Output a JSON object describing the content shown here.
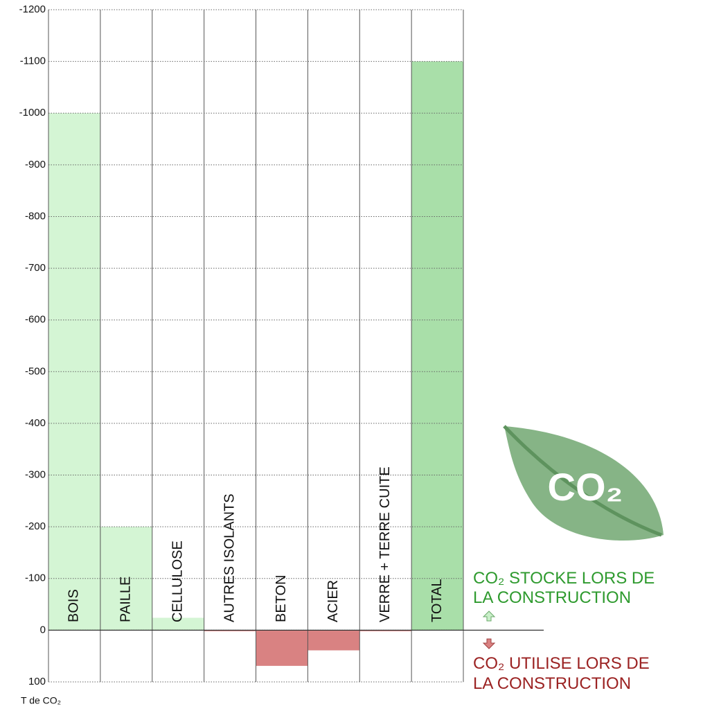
{
  "chart_data": {
    "type": "bar",
    "y_label": "T de CO₂",
    "categories": [
      "BOIS",
      "PAILLE",
      "CELLULOSE",
      "AUTRES ISOLANTS",
      "BETON",
      "ACIER",
      "VERRE + TERRE CUITE",
      "TOTAL"
    ],
    "values": [
      -1000,
      -200,
      -24,
      2,
      69,
      39,
      2,
      -1100
    ],
    "colors": [
      "#d4f5d4",
      "#d4f5d4",
      "#d4f5d4",
      "#d98282",
      "#d98282",
      "#d98282",
      "#d98282",
      "#a9dfa9"
    ],
    "ylim": [
      -1200,
      100
    ],
    "yticks": [
      -1200,
      -1100,
      -1000,
      -900,
      -800,
      -700,
      -600,
      -500,
      -400,
      -300,
      -200,
      -100,
      0,
      100
    ],
    "grid": true,
    "annotations": {
      "stored": [
        "CO₂ STOCKE LORS DE",
        "LA CONSTRUCTION"
      ],
      "used": [
        "CO₂ UTILISE LORS DE",
        "LA CONSTRUCTION"
      ],
      "logo": "CO₂"
    }
  }
}
